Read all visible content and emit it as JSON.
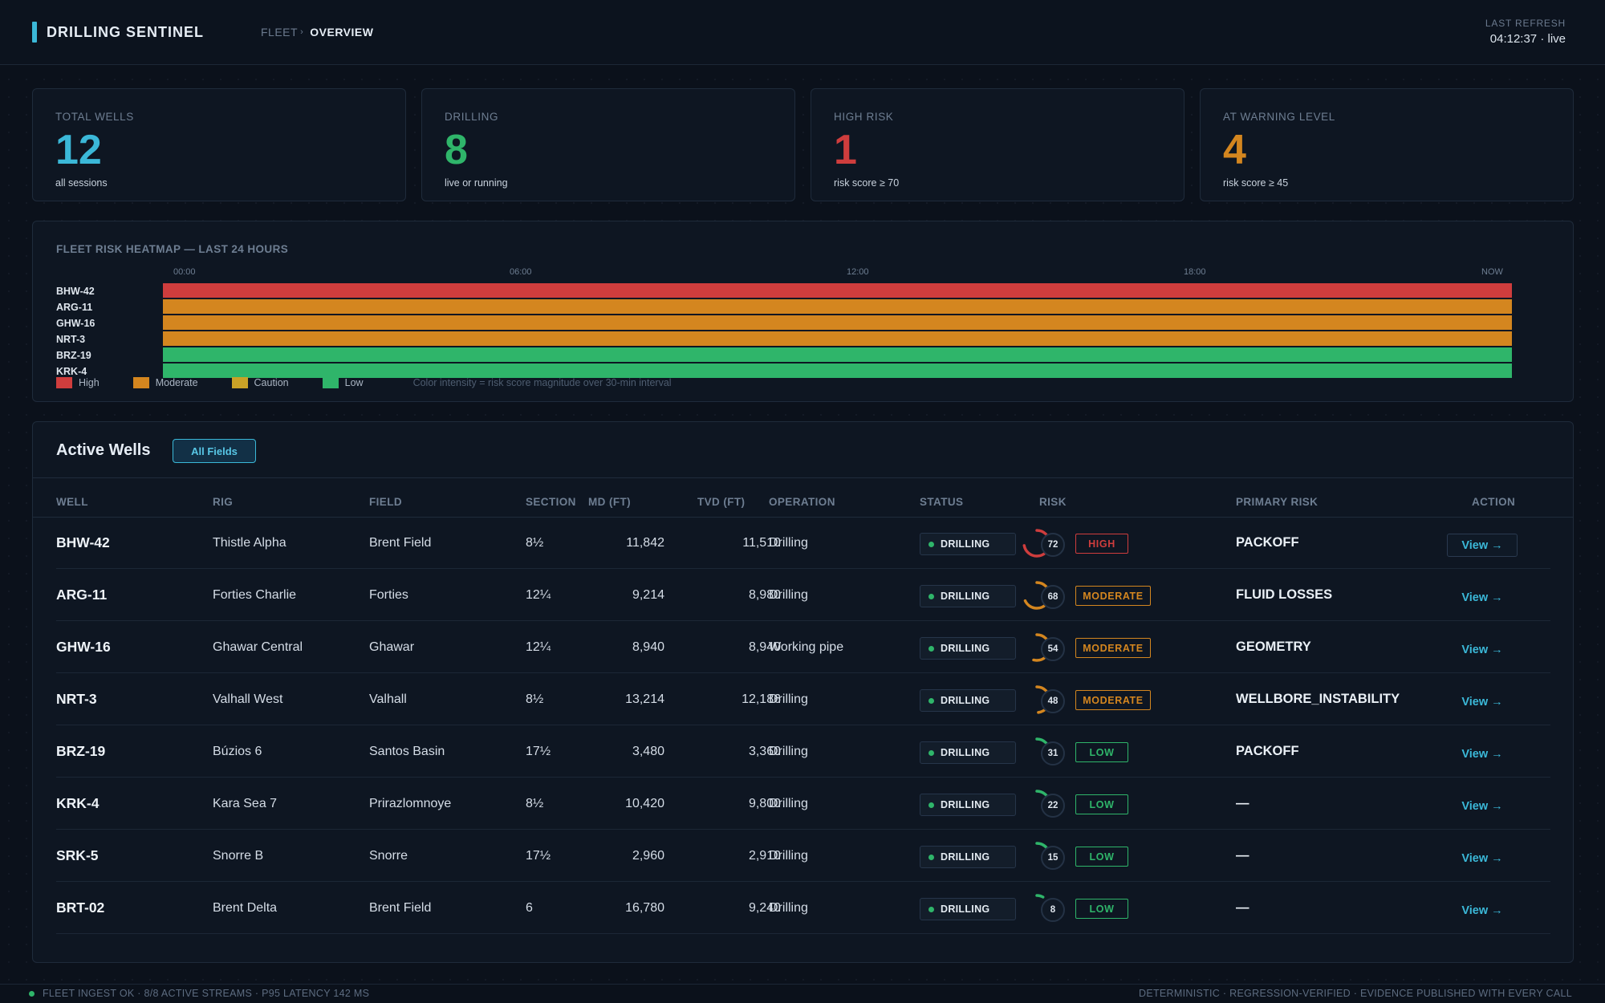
{
  "app": {
    "title": "DRILLING SENTINEL",
    "breadcrumb": [
      "FLEET",
      "OVERVIEW"
    ],
    "breadcrumb_separator": "›",
    "accent_color": "#3bb8d8"
  },
  "refresh": {
    "label": "LAST REFRESH",
    "value": "04:12:37 · live"
  },
  "kpis": [
    {
      "label": "TOTAL WELLS",
      "value": "12",
      "sub": "all sessions",
      "color": "#3bb8d8"
    },
    {
      "label": "DRILLING",
      "value": "8",
      "sub": "live or running",
      "color": "#2fb56a"
    },
    {
      "label": "HIGH RISK",
      "value": "1",
      "sub": "risk score ≥ 70",
      "color": "#cf3d3d"
    },
    {
      "label": "AT WARNING LEVEL",
      "value": "4",
      "sub": "risk score ≥ 45",
      "color": "#d4861f"
    }
  ],
  "heatmap": {
    "title": "FLEET RISK HEATMAP — LAST 24 HOURS",
    "time_ticks": [
      "00:00",
      "06:00",
      "12:00",
      "18:00",
      "NOW"
    ],
    "rows": [
      {
        "well": "BHW-42",
        "level": "High"
      },
      {
        "well": "ARG-11",
        "level": "Moderate"
      },
      {
        "well": "GHW-16",
        "level": "Moderate"
      },
      {
        "well": "NRT-3",
        "level": "Moderate"
      },
      {
        "well": "BRZ-19",
        "level": "Low"
      },
      {
        "well": "KRK-4",
        "level": "Low"
      }
    ],
    "legend": [
      {
        "label": "High",
        "color": "#cf3d3d"
      },
      {
        "label": "Moderate",
        "color": "#d4861f"
      },
      {
        "label": "Caution",
        "color": "#c9a227"
      },
      {
        "label": "Low",
        "color": "#2fb56a"
      }
    ],
    "note": "Color intensity = risk score magnitude over 30-min interval"
  },
  "wells": {
    "title": "Active Wells",
    "filter_label": "All Fields",
    "columns": [
      "WELL",
      "RIG",
      "FIELD",
      "SECTION",
      "MD (FT)",
      "TVD (FT)",
      "OPERATION",
      "STATUS",
      "RISK",
      "PRIMARY RISK",
      "ACTION"
    ],
    "view_label": "View →",
    "rows": [
      {
        "well": "BHW-42",
        "rig": "Thistle Alpha",
        "field": "Brent Field",
        "section": "8½",
        "md": "11,842",
        "tvd": "11,510",
        "operation": "Drilling",
        "status": "DRILLING",
        "risk_score": 72,
        "risk_level": "HIGH",
        "risk_color": "#cf3d3d",
        "primary_risk": "PACKOFF"
      },
      {
        "well": "ARG-11",
        "rig": "Forties Charlie",
        "field": "Forties",
        "section": "12¼",
        "md": "9,214",
        "tvd": "8,980",
        "operation": "Drilling",
        "status": "DRILLING",
        "risk_score": 68,
        "risk_level": "MODERATE",
        "risk_color": "#d4861f",
        "primary_risk": "FLUID LOSSES"
      },
      {
        "well": "GHW-16",
        "rig": "Ghawar Central",
        "field": "Ghawar",
        "section": "12¼",
        "md": "8,940",
        "tvd": "8,940",
        "operation": "Working pipe",
        "status": "DRILLING",
        "risk_score": 54,
        "risk_level": "MODERATE",
        "risk_color": "#d4861f",
        "primary_risk": "GEOMETRY"
      },
      {
        "well": "NRT-3",
        "rig": "Valhall West",
        "field": "Valhall",
        "section": "8½",
        "md": "13,214",
        "tvd": "12,186",
        "operation": "Drilling",
        "status": "DRILLING",
        "risk_score": 48,
        "risk_level": "MODERATE",
        "risk_color": "#d4861f",
        "primary_risk": "WELLBORE_INSTABILITY"
      },
      {
        "well": "BRZ-19",
        "rig": "Búzios 6",
        "field": "Santos Basin",
        "section": "17½",
        "md": "3,480",
        "tvd": "3,360",
        "operation": "Drilling",
        "status": "DRILLING",
        "risk_score": 31,
        "risk_level": "LOW",
        "risk_color": "#2fb56a",
        "primary_risk": "PACKOFF"
      },
      {
        "well": "KRK-4",
        "rig": "Kara Sea 7",
        "field": "Prirazlomnoye",
        "section": "8½",
        "md": "10,420",
        "tvd": "9,800",
        "operation": "Drilling",
        "status": "DRILLING",
        "risk_score": 22,
        "risk_level": "LOW",
        "risk_color": "#2fb56a",
        "primary_risk": "—"
      },
      {
        "well": "SRK-5",
        "rig": "Snorre B",
        "field": "Snorre",
        "section": "17½",
        "md": "2,960",
        "tvd": "2,910",
        "operation": "Drilling",
        "status": "DRILLING",
        "risk_score": 15,
        "risk_level": "LOW",
        "risk_color": "#2fb56a",
        "primary_risk": "—"
      },
      {
        "well": "BRT-02",
        "rig": "Brent Delta",
        "field": "Brent Field",
        "section": "6",
        "md": "16,780",
        "tvd": "9,240",
        "operation": "Drilling",
        "status": "DRILLING",
        "risk_score": 8,
        "risk_level": "LOW",
        "risk_color": "#2fb56a",
        "primary_risk": "—"
      }
    ]
  },
  "footer": {
    "left": "FLEET INGEST OK · 8/8 ACTIVE STREAMS · P95 LATENCY 142 MS",
    "right": "DETERMINISTIC · REGRESSION-VERIFIED · EVIDENCE PUBLISHED WITH EVERY CALL"
  }
}
